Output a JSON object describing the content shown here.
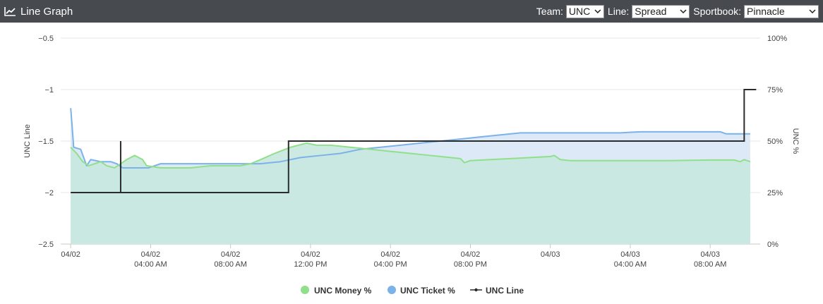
{
  "header": {
    "title": "Line Graph",
    "team_label": "Team:",
    "team_value": "UNC",
    "line_label": "Line:",
    "line_value": "Spread",
    "sportbook_label": "Sportbook:",
    "sportbook_value": "Pinnacle"
  },
  "colors": {
    "header_bg": "#474b50",
    "money": "#90e08a",
    "money_fill": "#c8e8df",
    "ticket": "#7cb2ea",
    "ticket_fill": "#dde9f7",
    "line": "#2b2b2b"
  },
  "chart_data": {
    "type": "line",
    "x_unit": "hours since 04/02 00:00",
    "x_ticks": [
      {
        "x": 0,
        "label": [
          "04/02"
        ]
      },
      {
        "x": 4,
        "label": [
          "04/02",
          "04:00 AM"
        ]
      },
      {
        "x": 8,
        "label": [
          "04/02",
          "08:00 AM"
        ]
      },
      {
        "x": 12,
        "label": [
          "04/02",
          "12:00 PM"
        ]
      },
      {
        "x": 16,
        "label": [
          "04/02",
          "04:00 PM"
        ]
      },
      {
        "x": 20,
        "label": [
          "04/02",
          "08:00 PM"
        ]
      },
      {
        "x": 24,
        "label": [
          "04/03"
        ]
      },
      {
        "x": 28,
        "label": [
          "04/03",
          "04:00 AM"
        ]
      },
      {
        "x": 32,
        "label": [
          "04/03",
          "08:00 AM"
        ]
      }
    ],
    "x_range": [
      -0.5,
      34.5
    ],
    "y_left": {
      "title": "UNC Line",
      "range": [
        -2.5,
        -0.5
      ],
      "ticks": [
        -0.5,
        -1,
        -1.5,
        -2,
        -2.5
      ],
      "tick_labels": [
        "−0.5",
        "−1",
        "−1.5",
        "−2",
        "−2.5"
      ]
    },
    "y_right": {
      "title": "UNC %",
      "range": [
        0,
        100
      ],
      "ticks": [
        100,
        75,
        50,
        25,
        0
      ],
      "tick_labels": [
        "100%",
        "75%",
        "50%",
        "25%",
        "0%"
      ]
    },
    "grid": true,
    "legend_position": "bottom",
    "series": [
      {
        "name": "UNC Money %",
        "axis": "right",
        "kind": "area",
        "points": [
          [
            0,
            47
          ],
          [
            0.3,
            44
          ],
          [
            0.6,
            40
          ],
          [
            0.9,
            38
          ],
          [
            1.2,
            39
          ],
          [
            1.5,
            40
          ],
          [
            1.8,
            38
          ],
          [
            2.2,
            37
          ],
          [
            2.8,
            41
          ],
          [
            3.2,
            43
          ],
          [
            3.6,
            41
          ],
          [
            3.8,
            38
          ],
          [
            4.5,
            37
          ],
          [
            6,
            37
          ],
          [
            7,
            38
          ],
          [
            8.5,
            38
          ],
          [
            9,
            39
          ],
          [
            9.5,
            41
          ],
          [
            10.2,
            44
          ],
          [
            11,
            47
          ],
          [
            11.8,
            49
          ],
          [
            12.3,
            48
          ],
          [
            13,
            48
          ],
          [
            14,
            47
          ],
          [
            15,
            46
          ],
          [
            16,
            45
          ],
          [
            17,
            44
          ],
          [
            18,
            43
          ],
          [
            19,
            42
          ],
          [
            19.5,
            41.5
          ],
          [
            19.7,
            39.5
          ],
          [
            20,
            40.5
          ],
          [
            21,
            41
          ],
          [
            22,
            41.5
          ],
          [
            23,
            42
          ],
          [
            24,
            42.5
          ],
          [
            24.2,
            43
          ],
          [
            24.5,
            41
          ],
          [
            25,
            40.5
          ],
          [
            26,
            40.5
          ],
          [
            28,
            40.5
          ],
          [
            30,
            40.5
          ],
          [
            32,
            40.8
          ],
          [
            33.2,
            40.8
          ],
          [
            33.5,
            40
          ],
          [
            33.7,
            41
          ],
          [
            34,
            40
          ]
        ]
      },
      {
        "name": "UNC Ticket %",
        "axis": "right",
        "kind": "area",
        "points": [
          [
            0,
            66
          ],
          [
            0.05,
            60
          ],
          [
            0.15,
            47
          ],
          [
            0.5,
            46
          ],
          [
            0.8,
            38
          ],
          [
            1.0,
            41
          ],
          [
            1.5,
            40
          ],
          [
            2.0,
            40
          ],
          [
            2.3,
            39
          ],
          [
            2.6,
            37
          ],
          [
            3.0,
            37
          ],
          [
            3.4,
            37
          ],
          [
            3.9,
            37
          ],
          [
            4.5,
            39
          ],
          [
            5.5,
            39
          ],
          [
            6.5,
            39
          ],
          [
            7.5,
            39
          ],
          [
            8.5,
            39
          ],
          [
            9.5,
            39
          ],
          [
            10.5,
            40
          ],
          [
            11.5,
            42
          ],
          [
            12.5,
            43
          ],
          [
            13.5,
            44
          ],
          [
            14.5,
            46
          ],
          [
            15.5,
            47
          ],
          [
            16.5,
            48
          ],
          [
            17.5,
            49
          ],
          [
            18.5,
            50
          ],
          [
            19.5,
            51
          ],
          [
            20.5,
            52
          ],
          [
            21.5,
            53
          ],
          [
            22.5,
            54
          ],
          [
            23.5,
            54
          ],
          [
            24.5,
            54
          ],
          [
            25.5,
            54
          ],
          [
            26.5,
            54
          ],
          [
            27.5,
            54
          ],
          [
            28.5,
            54.5
          ],
          [
            29.5,
            54.5
          ],
          [
            30.5,
            54.5
          ],
          [
            31.5,
            54.5
          ],
          [
            32.5,
            54.5
          ],
          [
            32.8,
            53.5
          ],
          [
            34,
            53.5
          ]
        ]
      },
      {
        "name": "UNC Line",
        "axis": "left",
        "kind": "step",
        "points": [
          [
            0,
            -2
          ],
          [
            2.5,
            -2
          ],
          [
            2.5,
            -1.5
          ],
          [
            2.5,
            -2
          ],
          [
            10.9,
            -2
          ],
          [
            10.9,
            -1.5
          ],
          [
            33.7,
            -1.5
          ],
          [
            33.7,
            -1
          ],
          [
            34.3,
            -1
          ]
        ]
      }
    ]
  }
}
